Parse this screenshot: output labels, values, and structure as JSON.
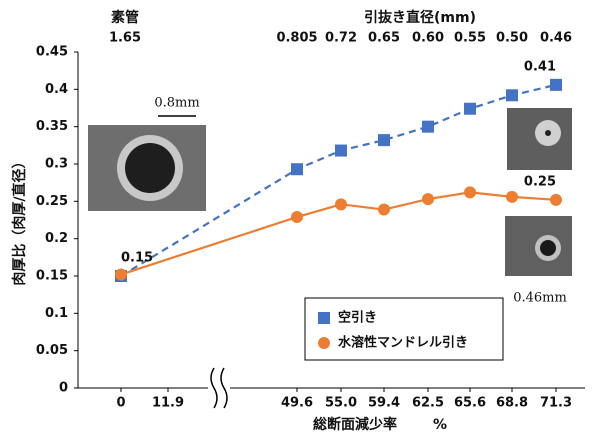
{
  "chart_data": {
    "type": "scatter-line",
    "y_label": "肉厚比（肉厚/直径）",
    "x_label": "総断面減少率",
    "x_unit": "%",
    "top_axis": {
      "title": "引抜き直径(mm)",
      "start_name": "素管",
      "start_value": "1.65",
      "labels": [
        "0.805",
        "0.72",
        "0.65",
        "0.60",
        "0.55",
        "0.50",
        "0.46"
      ]
    },
    "annotations": [
      "0.8mm",
      "0.46mm"
    ],
    "x": [
      0,
      49.6,
      55.0,
      59.4,
      62.5,
      65.6,
      68.8,
      71.3
    ],
    "xlim": [
      0,
      71.3
    ],
    "xticks": [
      0,
      11.9,
      49.6,
      {
        "value": 55,
        "label": "55.0"
      },
      59.4,
      62.5,
      65.6,
      68.8,
      71.3
    ],
    "ylim": [
      0,
      0.45
    ],
    "yticks": [
      0,
      0.05,
      0.1,
      0.15,
      0.2,
      0.25,
      0.3,
      0.35,
      0.4,
      0.45
    ],
    "legend": "lower-right",
    "series": [
      {
        "name": "空引き",
        "color": "#4472c4",
        "marker": "square",
        "dash": true,
        "values": [
          0.15,
          0.293,
          0.318,
          0.332,
          0.35,
          0.374,
          0.392,
          0.406
        ],
        "value_labels": [
          "0.15",
          null,
          null,
          null,
          null,
          null,
          null,
          "0.41"
        ]
      },
      {
        "name": "水溶性マンドレル引き",
        "color": "#ed7d31",
        "marker": "circle",
        "dash": false,
        "values": [
          0.152,
          0.229,
          0.246,
          0.239,
          0.253,
          0.262,
          0.256,
          0.252
        ],
        "value_labels": [
          null,
          null,
          null,
          null,
          null,
          null,
          null,
          "0.25"
        ]
      }
    ]
  }
}
